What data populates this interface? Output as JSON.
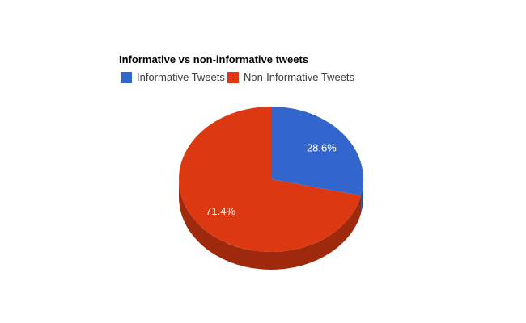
{
  "page": {
    "background_color": "#ffffff"
  },
  "chart_data": {
    "type": "pie",
    "is3d": true,
    "title": "Informative vs non-informative tweets",
    "legend_position": "top",
    "slices": [
      {
        "id": "informative-tweets",
        "label": "Informative Tweets",
        "value": 28.6,
        "display": "28.6%",
        "color": "#3366CC"
      },
      {
        "id": "non-informative-tweets",
        "label": "Non-Informative Tweets",
        "value": 71.4,
        "display": "71.4%",
        "color": "#DC3912"
      }
    ]
  }
}
